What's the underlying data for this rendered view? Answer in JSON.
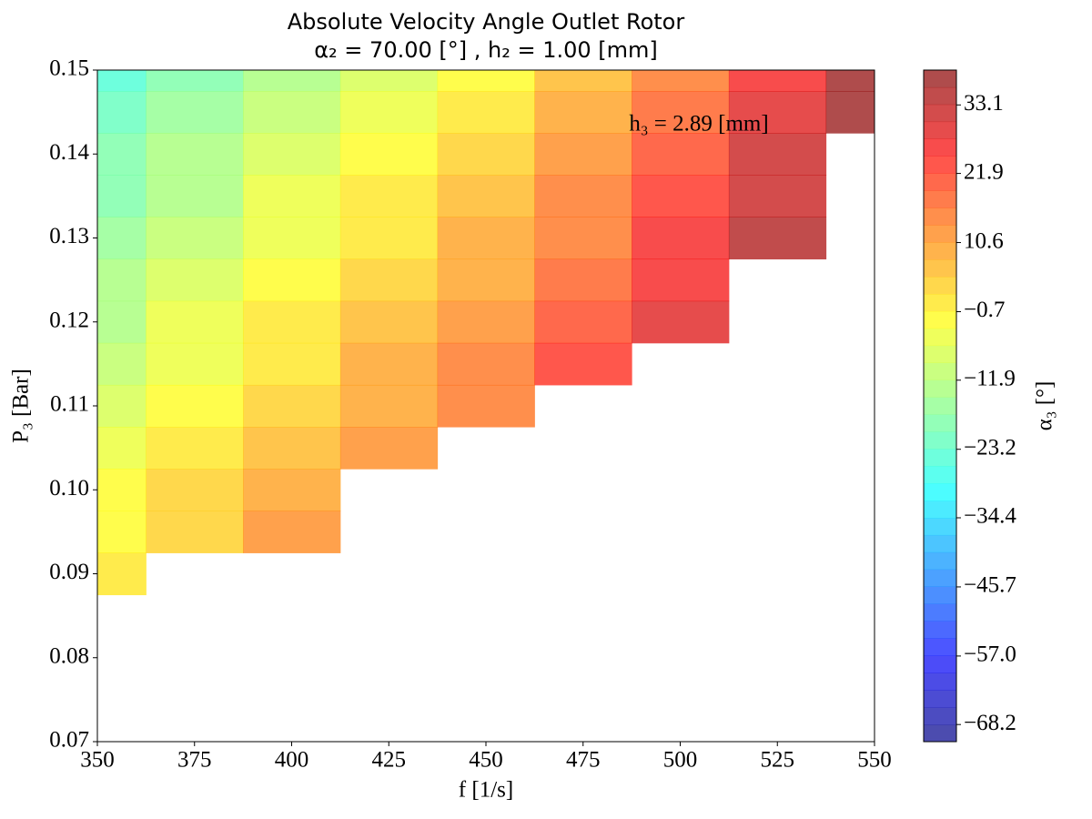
{
  "chart_data": {
    "type": "contourf",
    "title": "Absolute Velocity Angle Outlet Rotor",
    "subtitle": "α₂ = 70.00 [°] , h₂ = 1.00 [mm]",
    "annotation": "h₃ = 2.89 [mm]",
    "x_label": "f [1/s]",
    "y_label": "P₃ [Bar]",
    "colorbar_label": "α₃ [°]",
    "colormap": "jet",
    "x": [
      350,
      375,
      400,
      425,
      450,
      475,
      500,
      525,
      550
    ],
    "y": [
      0.15,
      0.145,
      0.14,
      0.135,
      0.13,
      0.125,
      0.12,
      0.115,
      0.11,
      0.105,
      0.1,
      0.095,
      0.09
    ],
    "z": [
      [
        -24,
        -18,
        -13,
        -7,
        -1,
        7,
        16,
        27,
        37
      ],
      [
        -22,
        -16,
        -11,
        -5,
        1,
        9,
        18,
        29,
        38
      ],
      [
        -20,
        -14,
        -8,
        -2,
        4,
        12,
        21,
        32,
        null
      ],
      [
        -18,
        -12,
        -6,
        0,
        6,
        14,
        23,
        33,
        null
      ],
      [
        -16,
        -10,
        -4,
        2,
        8,
        16,
        25,
        34,
        null
      ],
      [
        -14,
        -8,
        -2,
        4,
        10,
        18,
        27,
        null,
        null
      ],
      [
        -12,
        -6,
        0,
        6,
        12,
        20,
        29,
        null,
        null
      ],
      [
        -10,
        -4,
        2,
        8,
        14,
        22,
        null,
        null,
        null
      ],
      [
        -8,
        -2,
        4,
        10,
        16,
        null,
        null,
        null,
        null
      ],
      [
        -5,
        1,
        7,
        13,
        null,
        null,
        null,
        null,
        null
      ],
      [
        -3,
        3,
        9,
        null,
        null,
        null,
        null,
        null,
        null
      ],
      [
        -1,
        5,
        11,
        null,
        null,
        null,
        null,
        null,
        null
      ],
      [
        2,
        null,
        null,
        null,
        null,
        null,
        null,
        null,
        null
      ]
    ],
    "xlim": [
      350,
      550
    ],
    "xticks": [
      350,
      375,
      400,
      425,
      450,
      475,
      500,
      525,
      550
    ],
    "ylim": [
      0.07,
      0.15
    ],
    "yticks": [
      {
        "value": 0.07,
        "label": "0.07"
      },
      {
        "value": 0.08,
        "label": "0.08"
      },
      {
        "value": 0.09,
        "label": "0.09"
      },
      {
        "value": 0.1,
        "label": "0.10"
      },
      {
        "value": 0.11,
        "label": "0.11"
      },
      {
        "value": 0.12,
        "label": "0.12"
      },
      {
        "value": 0.13,
        "label": "0.13"
      },
      {
        "value": 0.14,
        "label": "0.14"
      },
      {
        "value": 0.15,
        "label": "0.15"
      }
    ],
    "zlim": [
      -71.0,
      38.8
    ],
    "levels": 39,
    "zticks": [
      {
        "value": -68.2,
        "label": "−68.2"
      },
      {
        "value": -57.0,
        "label": "−57.0"
      },
      {
        "value": -45.7,
        "label": "−45.7"
      },
      {
        "value": -34.4,
        "label": "−34.4"
      },
      {
        "value": -23.2,
        "label": "−23.2"
      },
      {
        "value": -11.9,
        "label": "−11.9"
      },
      {
        "value": -0.7,
        "label": "−0.7"
      },
      {
        "value": 10.6,
        "label": "10.6"
      },
      {
        "value": 21.9,
        "label": "21.9"
      },
      {
        "value": 33.1,
        "label": "33.1"
      }
    ],
    "alpha": 0.7
  }
}
